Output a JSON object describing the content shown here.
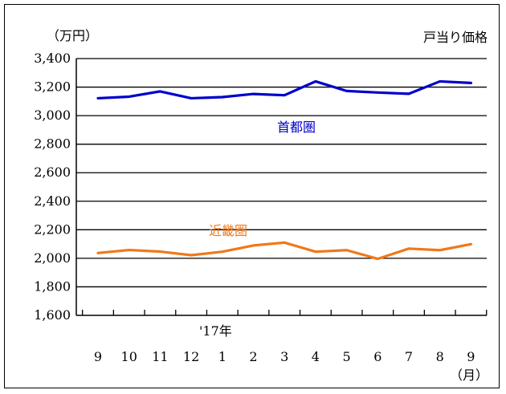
{
  "chart_data": {
    "type": "line",
    "title": "戸当り価格",
    "ylabel": "（万円）",
    "xlabel": "（月）",
    "year_marker": "'17年",
    "categories": [
      "9",
      "10",
      "11",
      "12",
      "1",
      "2",
      "3",
      "4",
      "5",
      "6",
      "7",
      "8",
      "9"
    ],
    "ylim": [
      1600,
      3400
    ],
    "yticks": [
      "1,600",
      "1,800",
      "2,000",
      "2,200",
      "2,400",
      "2,600",
      "2,800",
      "3,000",
      "3,200",
      "3,400"
    ],
    "ytick_values": [
      1600,
      1800,
      2000,
      2200,
      2400,
      2600,
      2800,
      3000,
      3200,
      3400
    ],
    "grid": true,
    "series": [
      {
        "name": "首都圏",
        "color": "#0000cc",
        "values": [
          3122,
          3133,
          3170,
          3122,
          3130,
          3152,
          3143,
          3240,
          3173,
          3162,
          3153,
          3240,
          3229
        ]
      },
      {
        "name": "近畿圏",
        "color": "#f07818",
        "values": [
          2037,
          2058,
          2047,
          2022,
          2046,
          2090,
          2110,
          2046,
          2057,
          1996,
          2068,
          2057,
          2099
        ]
      }
    ]
  }
}
